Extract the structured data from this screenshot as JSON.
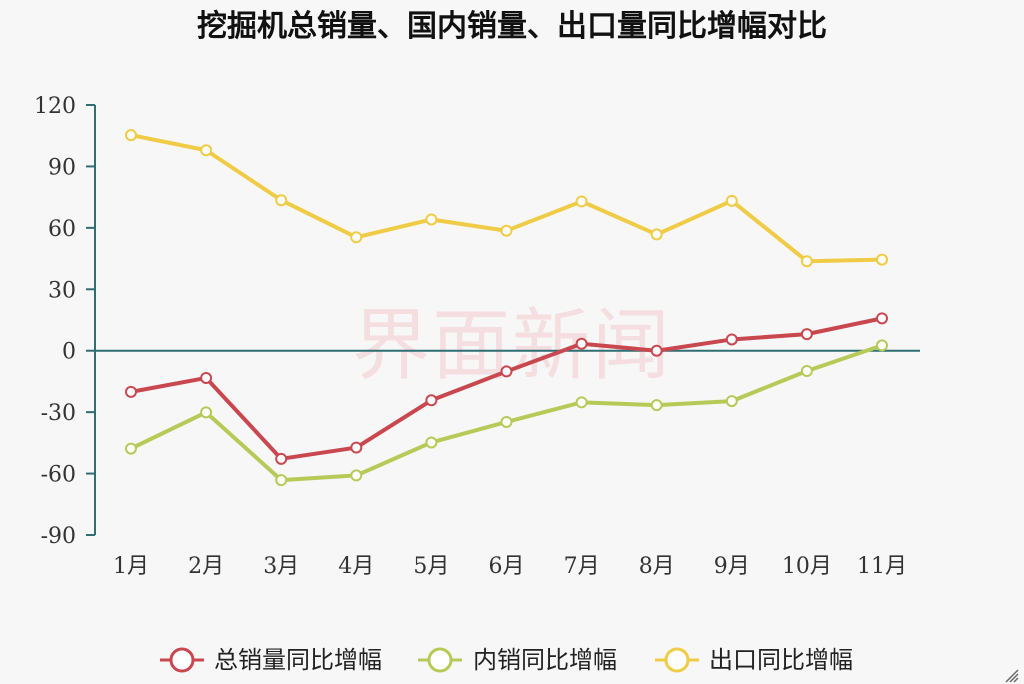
{
  "chart_data": {
    "type": "line",
    "title": "挖掘机总销量、国内销量、出口量同比增幅对比",
    "categories": [
      "1月",
      "2月",
      "3月",
      "4月",
      "5月",
      "6月",
      "7月",
      "8月",
      "9月",
      "10月",
      "11月"
    ],
    "series": [
      {
        "name": "总销量同比增幅",
        "color": "#c9474f",
        "values": [
          -20.1,
          -13.3,
          -52.8,
          -47.3,
          -24.2,
          -10.1,
          3.4,
          0,
          5.5,
          8.1,
          15.8
        ]
      },
      {
        "name": "内销同比增幅",
        "color": "#b6ca58",
        "values": [
          -47.8,
          -30.1,
          -63.2,
          -60.9,
          -44.8,
          -34.8,
          -25.2,
          -26.6,
          -24.6,
          -9.9,
          2.6
        ]
      },
      {
        "name": "出口同比增幅",
        "color": "#f0cb45",
        "values": [
          105.3,
          97.9,
          73.5,
          55.4,
          64.1,
          58.6,
          72.9,
          56.8,
          73.2,
          43.7,
          44.5
        ]
      }
    ],
    "yTicks": [
      "120",
      "90",
      "60",
      "30",
      "0",
      "-30",
      "-60",
      "-90"
    ],
    "ylim": [
      -90,
      120
    ],
    "xlabel": "",
    "ylabel": "",
    "grid": false,
    "legend": "bottom-center",
    "zero_line": true
  },
  "watermark": "界面新闻",
  "colors": {
    "axis": "#2f6f73",
    "background": "#f7f7f7"
  },
  "icons": {
    "corner": "resize-grip-icon"
  }
}
